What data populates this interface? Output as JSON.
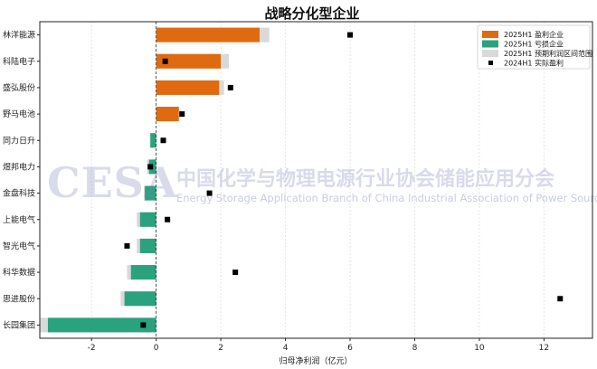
{
  "chart_data": {
    "type": "bar",
    "orientation": "horizontal",
    "title": "战略分化型企业",
    "xlabel": "归母净利润（亿元）",
    "ylabel": "",
    "xlim": [
      -3.6,
      13.5
    ],
    "xticks": [
      -2,
      0,
      2,
      4,
      6,
      8,
      10,
      12
    ],
    "grid": true,
    "legend_position": "top-right",
    "categories": [
      "林洋能源",
      "科陆电子",
      "盛弘股份",
      "野马电池",
      "同力日升",
      "煜邦电力",
      "金盘科技",
      "上能电气",
      "智光电气",
      "科华数据",
      "思进股份",
      "长园集团"
    ],
    "series": [
      {
        "name": "2025H1 预期利润区间范围",
        "kind": "range",
        "color": "#d9d9d9",
        "low": [
          0,
          0,
          0,
          0,
          -0.2,
          -0.28,
          -0.38,
          -0.6,
          -0.6,
          -0.9,
          -1.1,
          -3.6
        ],
        "high": [
          3.5,
          2.25,
          2.1,
          0.72,
          0,
          0,
          0,
          0,
          0,
          0,
          0,
          0
        ]
      },
      {
        "name": "2025H1 盈利企业",
        "kind": "bar",
        "color": "#e06a10",
        "values": [
          3.2,
          2.0,
          1.95,
          0.7,
          null,
          null,
          null,
          null,
          null,
          null,
          null,
          null
        ]
      },
      {
        "name": "2025H1 亏损企业",
        "kind": "bar",
        "color": "#2aa27e",
        "values": [
          null,
          null,
          null,
          null,
          -0.18,
          -0.22,
          -0.35,
          -0.5,
          -0.5,
          -0.78,
          -0.98,
          -3.35
        ]
      },
      {
        "name": "2024H1 实际盈利",
        "kind": "marker",
        "color": "#000000",
        "values": [
          6.0,
          0.28,
          2.3,
          0.8,
          0.22,
          -0.18,
          1.65,
          0.35,
          -0.9,
          2.45,
          12.5,
          -0.4
        ]
      }
    ]
  },
  "watermark": {
    "logo_text": "CESA",
    "org_cn": "中国化学与物理电源行业协会储能应用分会",
    "org_en": "Energy Storage Application Branch of China Industrial Association of Power Sources"
  }
}
